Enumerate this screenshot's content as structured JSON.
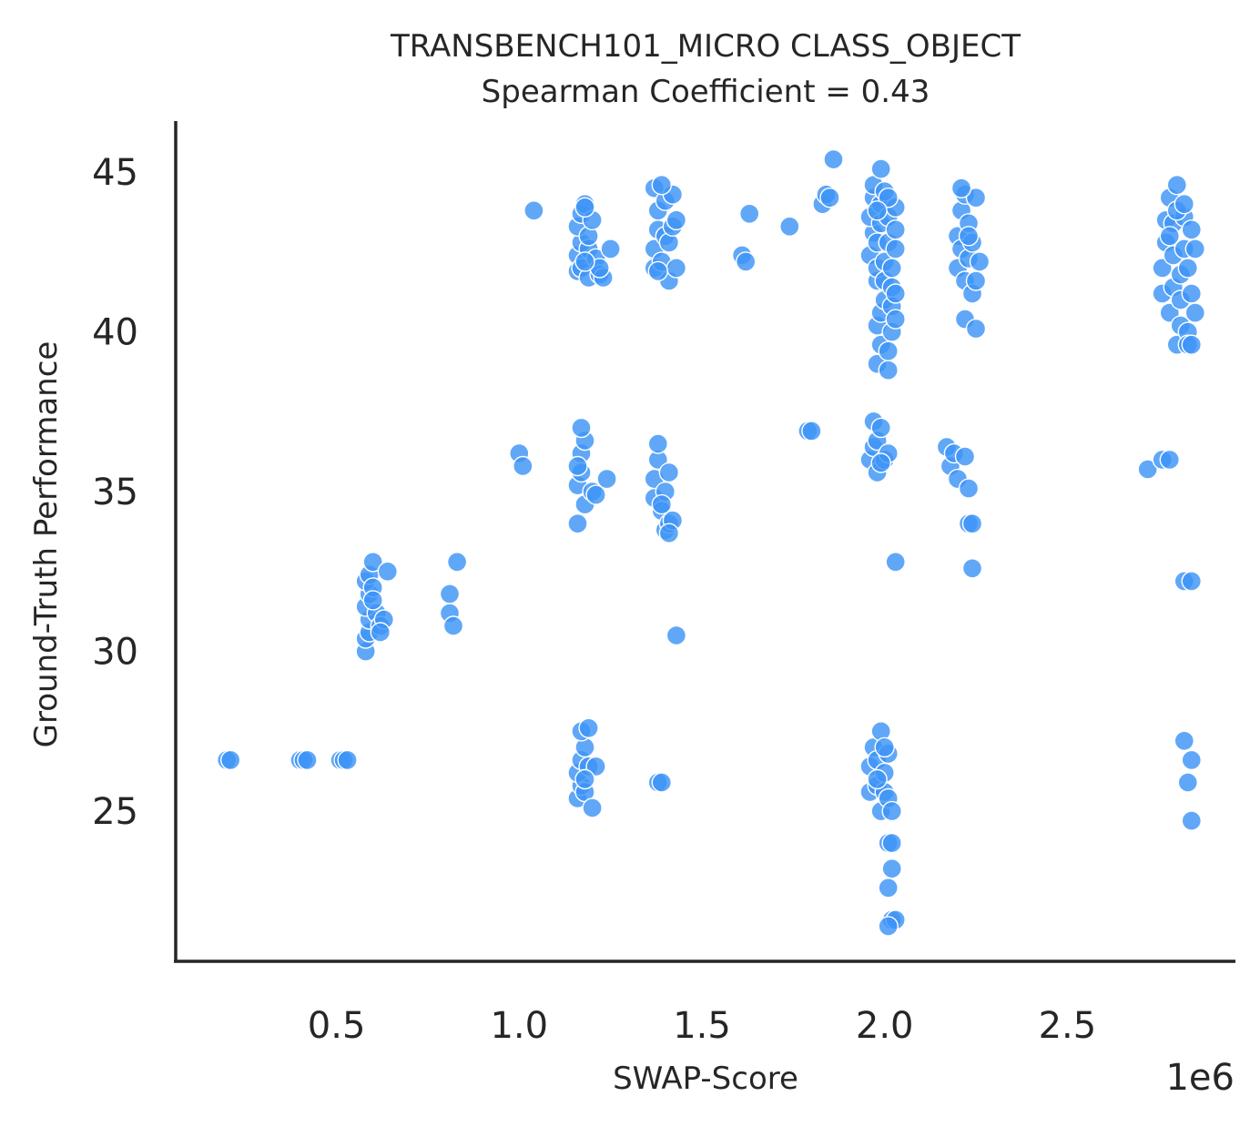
{
  "chart_data": {
    "type": "scatter",
    "title": "TRANSBENCH101_MICRO CLASS_OBJECT",
    "subtitle": "Spearman Coefficient = 0.43",
    "xlabel": "SWAP-Score",
    "ylabel": "Ground-Truth Performance",
    "x_offset_label": "1e6",
    "x_scale": 1000000,
    "xlim": [
      0.06,
      2.96
    ],
    "ylim": [
      20.3,
      46.6
    ],
    "xticks": [
      0.5,
      1.0,
      1.5,
      2.0,
      2.5
    ],
    "xtick_labels": [
      "0.5",
      "1.0",
      "1.5",
      "2.0",
      "2.5"
    ],
    "yticks": [
      25,
      30,
      35,
      40,
      45
    ],
    "ytick_labels": [
      "25",
      "30",
      "35",
      "40",
      "45"
    ],
    "grid": false,
    "color": "#3d94f7",
    "points": [
      [
        0.2,
        26.6
      ],
      [
        0.21,
        26.6
      ],
      [
        0.4,
        26.6
      ],
      [
        0.41,
        26.6
      ],
      [
        0.42,
        26.6
      ],
      [
        0.51,
        26.6
      ],
      [
        0.52,
        26.6
      ],
      [
        0.53,
        26.6
      ],
      [
        0.58,
        30.0
      ],
      [
        0.58,
        30.4
      ],
      [
        0.59,
        30.6
      ],
      [
        0.59,
        31.0
      ],
      [
        0.58,
        31.4
      ],
      [
        0.59,
        31.8
      ],
      [
        0.58,
        32.2
      ],
      [
        0.59,
        32.4
      ],
      [
        0.6,
        32.8
      ],
      [
        0.6,
        32.0
      ],
      [
        0.61,
        31.2
      ],
      [
        0.62,
        30.8
      ],
      [
        0.63,
        31.0
      ],
      [
        0.64,
        32.5
      ],
      [
        0.62,
        30.6
      ],
      [
        0.6,
        31.6
      ],
      [
        0.81,
        31.8
      ],
      [
        0.81,
        31.2
      ],
      [
        0.82,
        30.8
      ],
      [
        0.83,
        32.8
      ],
      [
        1.0,
        36.2
      ],
      [
        1.01,
        35.8
      ],
      [
        1.04,
        43.8
      ],
      [
        1.16,
        34.0
      ],
      [
        1.16,
        35.2
      ],
      [
        1.17,
        35.6
      ],
      [
        1.17,
        36.2
      ],
      [
        1.18,
        34.6
      ],
      [
        1.18,
        36.6
      ],
      [
        1.17,
        37.0
      ],
      [
        1.16,
        35.8
      ],
      [
        1.2,
        35.0
      ],
      [
        1.21,
        34.9
      ],
      [
        1.24,
        35.4
      ],
      [
        1.16,
        41.9
      ],
      [
        1.16,
        42.4
      ],
      [
        1.17,
        42.8
      ],
      [
        1.16,
        43.3
      ],
      [
        1.17,
        43.7
      ],
      [
        1.18,
        44.0
      ],
      [
        1.17,
        42.0
      ],
      [
        1.19,
        41.7
      ],
      [
        1.19,
        42.6
      ],
      [
        1.19,
        43.0
      ],
      [
        1.2,
        43.5
      ],
      [
        1.18,
        43.9
      ],
      [
        1.21,
        42.3
      ],
      [
        1.22,
        41.8
      ],
      [
        1.23,
        41.7
      ],
      [
        1.25,
        42.6
      ],
      [
        1.22,
        42.0
      ],
      [
        1.18,
        42.2
      ],
      [
        1.16,
        25.4
      ],
      [
        1.17,
        25.8
      ],
      [
        1.16,
        26.2
      ],
      [
        1.17,
        26.6
      ],
      [
        1.18,
        27.0
      ],
      [
        1.17,
        27.5
      ],
      [
        1.18,
        25.6
      ],
      [
        1.19,
        26.4
      ],
      [
        1.19,
        27.6
      ],
      [
        1.2,
        25.1
      ],
      [
        1.21,
        26.4
      ],
      [
        1.18,
        26.0
      ],
      [
        1.37,
        34.8
      ],
      [
        1.37,
        35.4
      ],
      [
        1.38,
        36.0
      ],
      [
        1.38,
        36.5
      ],
      [
        1.39,
        34.4
      ],
      [
        1.4,
        33.8
      ],
      [
        1.41,
        34.0
      ],
      [
        1.4,
        35.0
      ],
      [
        1.41,
        35.6
      ],
      [
        1.39,
        34.6
      ],
      [
        1.42,
        34.1
      ],
      [
        1.41,
        33.7
      ],
      [
        1.37,
        42.0
      ],
      [
        1.37,
        42.6
      ],
      [
        1.38,
        43.2
      ],
      [
        1.38,
        43.8
      ],
      [
        1.37,
        44.5
      ],
      [
        1.39,
        42.2
      ],
      [
        1.4,
        43.0
      ],
      [
        1.4,
        44.1
      ],
      [
        1.41,
        41.6
      ],
      [
        1.41,
        42.8
      ],
      [
        1.42,
        43.3
      ],
      [
        1.42,
        44.3
      ],
      [
        1.43,
        42.0
      ],
      [
        1.43,
        43.5
      ],
      [
        1.39,
        44.6
      ],
      [
        1.38,
        41.9
      ],
      [
        1.38,
        25.9
      ],
      [
        1.39,
        25.9
      ],
      [
        1.43,
        30.5
      ],
      [
        1.61,
        42.4
      ],
      [
        1.62,
        42.2
      ],
      [
        1.63,
        43.7
      ],
      [
        1.74,
        43.3
      ],
      [
        1.79,
        36.9
      ],
      [
        1.8,
        36.9
      ],
      [
        1.83,
        44.0
      ],
      [
        1.84,
        44.3
      ],
      [
        1.85,
        44.2
      ],
      [
        1.86,
        45.4
      ],
      [
        1.96,
        36.0
      ],
      [
        1.97,
        36.4
      ],
      [
        1.97,
        37.2
      ],
      [
        1.98,
        35.6
      ],
      [
        1.98,
        36.6
      ],
      [
        1.99,
        37.0
      ],
      [
        2.0,
        36.0
      ],
      [
        2.01,
        36.2
      ],
      [
        1.99,
        35.9
      ],
      [
        2.03,
        32.8
      ],
      [
        1.96,
        42.4
      ],
      [
        1.97,
        43.1
      ],
      [
        1.96,
        43.6
      ],
      [
        1.97,
        44.2
      ],
      [
        1.97,
        44.6
      ],
      [
        1.98,
        41.6
      ],
      [
        1.98,
        42.0
      ],
      [
        1.98,
        42.8
      ],
      [
        1.99,
        43.4
      ],
      [
        1.99,
        44.0
      ],
      [
        1.99,
        45.1
      ],
      [
        1.98,
        39.0
      ],
      [
        1.99,
        39.6
      ],
      [
        1.98,
        40.2
      ],
      [
        1.99,
        40.6
      ],
      [
        2.0,
        41.0
      ],
      [
        2.0,
        41.6
      ],
      [
        2.0,
        42.2
      ],
      [
        2.01,
        42.8
      ],
      [
        2.01,
        43.6
      ],
      [
        2.0,
        44.4
      ],
      [
        2.01,
        38.8
      ],
      [
        2.01,
        39.4
      ],
      [
        2.02,
        40.0
      ],
      [
        2.02,
        40.8
      ],
      [
        2.02,
        41.4
      ],
      [
        2.02,
        42.0
      ],
      [
        2.03,
        42.6
      ],
      [
        2.03,
        43.2
      ],
      [
        2.03,
        43.9
      ],
      [
        2.03,
        40.4
      ],
      [
        2.03,
        41.2
      ],
      [
        2.01,
        44.2
      ],
      [
        1.98,
        43.8
      ]
    ],
    "points_extra": [
      [
        1.96,
        25.6
      ],
      [
        1.96,
        26.4
      ],
      [
        1.97,
        27.0
      ],
      [
        1.98,
        25.8
      ],
      [
        1.98,
        26.6
      ],
      [
        1.99,
        27.5
      ],
      [
        1.99,
        25.0
      ],
      [
        2.0,
        25.6
      ],
      [
        2.0,
        26.2
      ],
      [
        2.01,
        26.8
      ],
      [
        2.01,
        25.4
      ],
      [
        2.01,
        24.0
      ],
      [
        2.02,
        24.0
      ],
      [
        2.02,
        23.2
      ],
      [
        2.01,
        22.6
      ],
      [
        2.02,
        21.6
      ],
      [
        2.03,
        21.6
      ],
      [
        2.01,
        21.4
      ],
      [
        2.0,
        27.0
      ],
      [
        2.02,
        25.0
      ],
      [
        1.98,
        26.0
      ],
      [
        2.17,
        36.4
      ],
      [
        2.18,
        35.8
      ],
      [
        2.19,
        36.2
      ],
      [
        2.2,
        35.4
      ],
      [
        2.22,
        36.1
      ],
      [
        2.23,
        35.1
      ],
      [
        2.23,
        34.0
      ],
      [
        2.24,
        34.0
      ],
      [
        2.24,
        32.6
      ],
      [
        2.2,
        42.0
      ],
      [
        2.2,
        43.0
      ],
      [
        2.21,
        42.6
      ],
      [
        2.21,
        43.8
      ],
      [
        2.22,
        44.3
      ],
      [
        2.22,
        41.6
      ],
      [
        2.23,
        42.3
      ],
      [
        2.23,
        43.4
      ],
      [
        2.24,
        42.8
      ],
      [
        2.24,
        41.2
      ],
      [
        2.25,
        44.2
      ],
      [
        2.25,
        41.6
      ],
      [
        2.26,
        42.2
      ],
      [
        2.22,
        40.4
      ],
      [
        2.25,
        40.1
      ],
      [
        2.21,
        44.5
      ],
      [
        2.23,
        43.0
      ],
      [
        2.72,
        35.7
      ],
      [
        2.76,
        36.0
      ],
      [
        2.78,
        36.0
      ],
      [
        2.76,
        41.2
      ],
      [
        2.76,
        42.0
      ],
      [
        2.77,
        42.8
      ],
      [
        2.77,
        43.5
      ],
      [
        2.78,
        44.2
      ],
      [
        2.78,
        40.6
      ],
      [
        2.79,
        41.4
      ],
      [
        2.79,
        42.4
      ],
      [
        2.79,
        43.4
      ],
      [
        2.8,
        44.6
      ],
      [
        2.8,
        39.6
      ],
      [
        2.81,
        40.2
      ],
      [
        2.81,
        41.0
      ],
      [
        2.81,
        41.8
      ],
      [
        2.82,
        42.6
      ],
      [
        2.82,
        43.6
      ],
      [
        2.83,
        40.0
      ],
      [
        2.83,
        42.0
      ],
      [
        2.84,
        43.2
      ],
      [
        2.84,
        41.2
      ],
      [
        2.85,
        42.6
      ],
      [
        2.85,
        40.6
      ],
      [
        2.83,
        39.6
      ],
      [
        2.84,
        39.6
      ],
      [
        2.8,
        43.8
      ],
      [
        2.82,
        44.0
      ],
      [
        2.78,
        43.0
      ],
      [
        2.82,
        32.2
      ],
      [
        2.84,
        32.2
      ],
      [
        2.82,
        27.2
      ],
      [
        2.84,
        26.6
      ],
      [
        2.83,
        25.9
      ],
      [
        2.84,
        24.7
      ]
    ]
  }
}
